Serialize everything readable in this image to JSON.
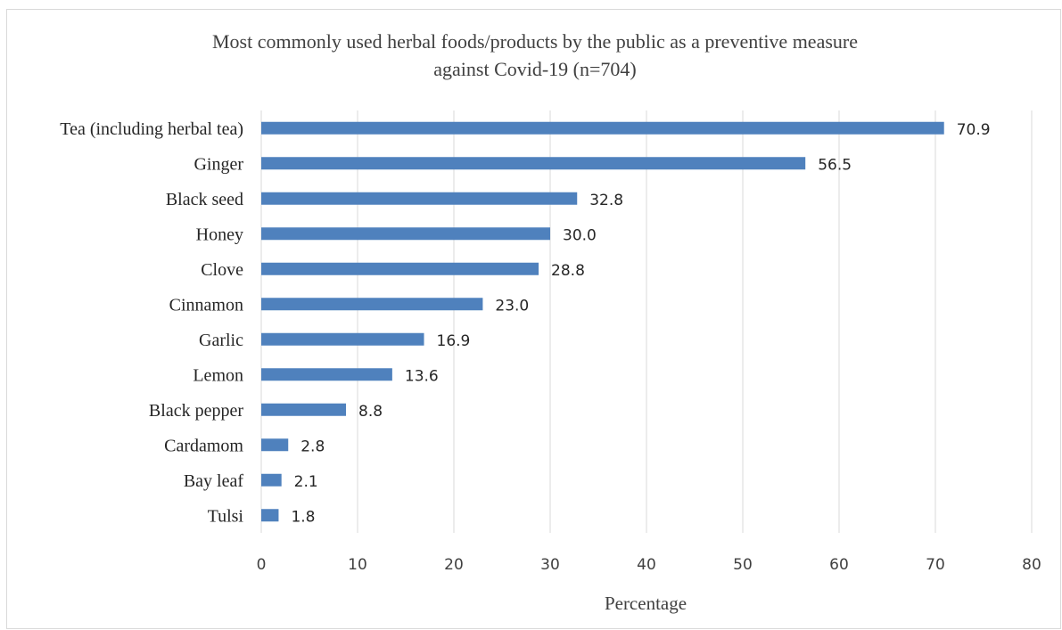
{
  "chart_data": {
    "type": "bar",
    "orientation": "horizontal",
    "title_lines": [
      "Most commonly used herbal foods/products by the public as a preventive measure",
      "against Covid-19 (n=704)"
    ],
    "xlabel": "Percentage",
    "ylabel": "",
    "xlim": [
      0,
      80
    ],
    "xticks": [
      0,
      10,
      20,
      30,
      40,
      50,
      60,
      70,
      80
    ],
    "grid": "vertical",
    "legend": "none",
    "bar_color": "#4f81bd",
    "categories": [
      "Tea (including herbal tea)",
      "Ginger",
      "Black seed",
      "Honey",
      "Clove",
      "Cinnamon",
      "Garlic",
      "Lemon",
      "Black pepper",
      "Cardamom",
      "Bay leaf",
      "Tulsi"
    ],
    "values": [
      70.9,
      56.5,
      32.8,
      30.0,
      28.8,
      23.0,
      16.9,
      13.6,
      8.8,
      2.8,
      2.1,
      1.8
    ],
    "value_labels": [
      "70.9",
      "56.5",
      "32.8",
      "30.0",
      "28.8",
      "23.0",
      "16.9",
      "13.6",
      "8.8",
      "2.8",
      "2.1",
      "1.8"
    ]
  }
}
